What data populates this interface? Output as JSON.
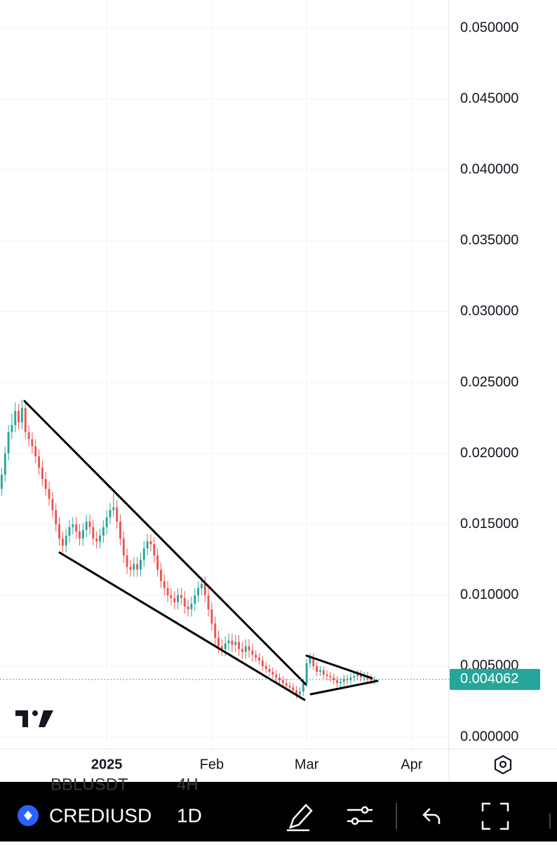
{
  "chart_data": {
    "type": "candlestick",
    "categories": [
      null,
      null,
      null,
      null,
      null,
      null,
      null,
      null,
      null,
      null,
      null,
      null,
      null,
      null,
      null,
      null,
      null,
      null,
      null,
      null,
      null,
      null,
      null,
      null,
      null,
      null,
      null,
      null,
      null,
      null,
      null,
      null,
      null,
      null,
      null,
      null,
      null,
      null,
      null,
      null,
      null,
      null,
      null,
      null,
      null,
      null,
      null,
      null,
      null,
      null,
      null,
      null,
      null,
      null,
      null,
      null,
      null,
      null,
      null,
      null,
      null,
      null,
      null,
      null,
      null,
      null,
      null,
      null,
      null,
      null,
      null,
      null,
      null,
      null,
      null,
      null,
      null,
      null,
      null,
      null,
      null,
      null,
      null,
      null,
      null,
      null,
      null,
      null,
      null,
      null,
      null,
      null,
      null,
      null,
      null,
      null,
      null,
      null,
      null,
      null,
      null,
      null,
      null,
      null,
      null,
      null,
      null,
      null,
      null,
      null,
      null
    ],
    "open": [
      0.0175,
      0.0185,
      0.02,
      0.0215,
      0.022,
      0.023,
      0.0222,
      0.0232,
      0.0215,
      0.021,
      0.0205,
      0.0198,
      0.019,
      0.0182,
      0.0175,
      0.0168,
      0.016,
      0.015,
      0.014,
      0.0135,
      0.0142,
      0.0148,
      0.015,
      0.0145,
      0.014,
      0.0146,
      0.0152,
      0.0148,
      0.014,
      0.0138,
      0.0142,
      0.0148,
      0.0155,
      0.016,
      0.0162,
      0.0152,
      0.014,
      0.0128,
      0.012,
      0.0118,
      0.0122,
      0.0118,
      0.0125,
      0.0133,
      0.0138,
      0.0136,
      0.0128,
      0.0118,
      0.011,
      0.0105,
      0.01,
      0.0098,
      0.0095,
      0.01,
      0.0098,
      0.0092,
      0.009,
      0.0094,
      0.01,
      0.0105,
      0.0108,
      0.01,
      0.009,
      0.008,
      0.007,
      0.0064,
      0.0062,
      0.0066,
      0.0068,
      0.0065,
      0.0067,
      0.0062,
      0.006,
      0.0064,
      0.0061,
      0.0058,
      0.0056,
      0.0054,
      0.005,
      0.0048,
      0.0046,
      0.0044,
      0.0042,
      0.004,
      0.0038,
      0.0036,
      0.0035,
      0.0033,
      0.003,
      0.0032,
      0.0038,
      0.0052,
      0.0056,
      0.005,
      0.0046,
      0.0047,
      0.0044,
      0.0043,
      0.0042,
      0.004,
      0.0038,
      0.0039,
      0.0041,
      0.004,
      0.0042,
      0.0043,
      0.0044,
      0.0042,
      0.0043,
      0.0041,
      0.004
    ],
    "high": [
      0.019,
      0.0205,
      0.022,
      0.0228,
      0.0236,
      0.0235,
      0.0238,
      0.0237,
      0.022,
      0.0215,
      0.021,
      0.0203,
      0.0195,
      0.0187,
      0.018,
      0.0173,
      0.0165,
      0.0155,
      0.0145,
      0.0147,
      0.0153,
      0.0155,
      0.0155,
      0.015,
      0.0151,
      0.0157,
      0.0157,
      0.0153,
      0.0145,
      0.0147,
      0.0153,
      0.016,
      0.0165,
      0.0172,
      0.0167,
      0.0157,
      0.0145,
      0.0133,
      0.0125,
      0.0127,
      0.0127,
      0.013,
      0.0138,
      0.0143,
      0.0143,
      0.0141,
      0.0133,
      0.0123,
      0.0115,
      0.011,
      0.0105,
      0.0103,
      0.0105,
      0.0105,
      0.0103,
      0.0097,
      0.0099,
      0.0105,
      0.011,
      0.0113,
      0.0113,
      0.0105,
      0.0095,
      0.0085,
      0.0075,
      0.0069,
      0.0071,
      0.0073,
      0.0073,
      0.0072,
      0.0072,
      0.0067,
      0.0069,
      0.0069,
      0.0066,
      0.0061,
      0.0059,
      0.0057,
      0.0053,
      0.0051,
      0.0049,
      0.0047,
      0.0045,
      0.0043,
      0.0041,
      0.0039,
      0.0038,
      0.0036,
      0.0035,
      0.0041,
      0.0055,
      0.0059,
      0.0059,
      0.0053,
      0.005,
      0.005,
      0.0047,
      0.0046,
      0.0045,
      0.0043,
      0.0042,
      0.0044,
      0.0044,
      0.0045,
      0.0046,
      0.0047,
      0.0047,
      0.0046,
      0.0046,
      0.0044,
      0.0043
    ],
    "low": [
      0.017,
      0.018,
      0.0195,
      0.021,
      0.0215,
      0.0217,
      0.0217,
      0.021,
      0.0205,
      0.02,
      0.0193,
      0.0185,
      0.0177,
      0.017,
      0.0163,
      0.0155,
      0.0145,
      0.0135,
      0.013,
      0.013,
      0.0137,
      0.0143,
      0.014,
      0.0135,
      0.0135,
      0.0141,
      0.0143,
      0.0135,
      0.0133,
      0.0133,
      0.0137,
      0.0143,
      0.015,
      0.0155,
      0.0147,
      0.0135,
      0.0123,
      0.0115,
      0.0113,
      0.0113,
      0.0113,
      0.0113,
      0.012,
      0.0128,
      0.0131,
      0.0123,
      0.0113,
      0.0105,
      0.01,
      0.0095,
      0.0093,
      0.009,
      0.009,
      0.0093,
      0.0087,
      0.0085,
      0.0085,
      0.0089,
      0.0095,
      0.01,
      0.0095,
      0.0085,
      0.0075,
      0.0065,
      0.0059,
      0.0057,
      0.0057,
      0.0061,
      0.006,
      0.006,
      0.0057,
      0.0055,
      0.0055,
      0.0056,
      0.0053,
      0.0053,
      0.0051,
      0.0047,
      0.0045,
      0.0043,
      0.0041,
      0.0039,
      0.0037,
      0.0035,
      0.0033,
      0.0032,
      0.003,
      0.0027,
      0.0027,
      0.0029,
      0.0035,
      0.0049,
      0.0047,
      0.0043,
      0.0043,
      0.0041,
      0.004,
      0.0039,
      0.0037,
      0.0035,
      0.0035,
      0.0036,
      0.0037,
      0.0037,
      0.0039,
      0.004,
      0.0039,
      0.0039,
      0.0038,
      0.0037,
      0.0037
    ],
    "close": [
      0.0185,
      0.02,
      0.0215,
      0.022,
      0.023,
      0.0222,
      0.0232,
      0.0215,
      0.021,
      0.0205,
      0.0198,
      0.019,
      0.0182,
      0.0175,
      0.0168,
      0.016,
      0.015,
      0.014,
      0.0135,
      0.0142,
      0.0148,
      0.015,
      0.0145,
      0.014,
      0.0146,
      0.0152,
      0.0148,
      0.014,
      0.0138,
      0.0142,
      0.0148,
      0.0155,
      0.016,
      0.0162,
      0.0152,
      0.014,
      0.0128,
      0.012,
      0.0118,
      0.0122,
      0.0118,
      0.0125,
      0.0133,
      0.0138,
      0.0136,
      0.0128,
      0.0118,
      0.011,
      0.0105,
      0.01,
      0.0098,
      0.0095,
      0.01,
      0.0098,
      0.0092,
      0.009,
      0.0094,
      0.01,
      0.0105,
      0.0108,
      0.01,
      0.009,
      0.008,
      0.007,
      0.0064,
      0.0062,
      0.0066,
      0.0068,
      0.0065,
      0.0067,
      0.0062,
      0.006,
      0.0064,
      0.0061,
      0.0058,
      0.0056,
      0.0054,
      0.005,
      0.0048,
      0.0046,
      0.0044,
      0.0042,
      0.004,
      0.0038,
      0.0036,
      0.0035,
      0.0033,
      0.003,
      0.0032,
      0.0038,
      0.0052,
      0.0056,
      0.005,
      0.0046,
      0.0047,
      0.0044,
      0.0043,
      0.0042,
      0.004,
      0.0038,
      0.0039,
      0.0041,
      0.004,
      0.0042,
      0.0043,
      0.0044,
      0.0042,
      0.0043,
      0.0041,
      0.004,
      0.004062
    ],
    "up_color": "#26a69a",
    "down_color": "#ef5350",
    "last_price": 0.004062,
    "last_price_color": "#26a69a",
    "xlim": [
      -0.5,
      132
    ],
    "xticks": [
      {
        "value": 31,
        "label": "2025"
      },
      {
        "value": 62,
        "label": "Feb"
      },
      {
        "value": 90,
        "label": "Mar"
      },
      {
        "value": 121,
        "label": "Apr"
      }
    ],
    "ylim": [
      0,
      0.05
    ],
    "yticks": [
      {
        "value": 0,
        "label": "0.000000"
      },
      {
        "value": 0.005,
        "label": "0.005000"
      },
      {
        "value": 0.01,
        "label": "0.010000"
      },
      {
        "value": 0.015,
        "label": "0.015000"
      },
      {
        "value": 0.02,
        "label": "0.020000"
      },
      {
        "value": 0.025,
        "label": "0.025000"
      },
      {
        "value": 0.03,
        "label": "0.030000"
      },
      {
        "value": 0.035,
        "label": "0.035000"
      },
      {
        "value": 0.04,
        "label": "0.040000"
      },
      {
        "value": 0.045,
        "label": "0.045000"
      },
      {
        "value": 0.05,
        "label": "0.050000"
      }
    ],
    "grid": true
  },
  "toolbar": {
    "symbol": "CREDIUSD",
    "interval": "1D",
    "overlay_symbol": "BBLUSDT",
    "overlay_interval": "4H"
  }
}
